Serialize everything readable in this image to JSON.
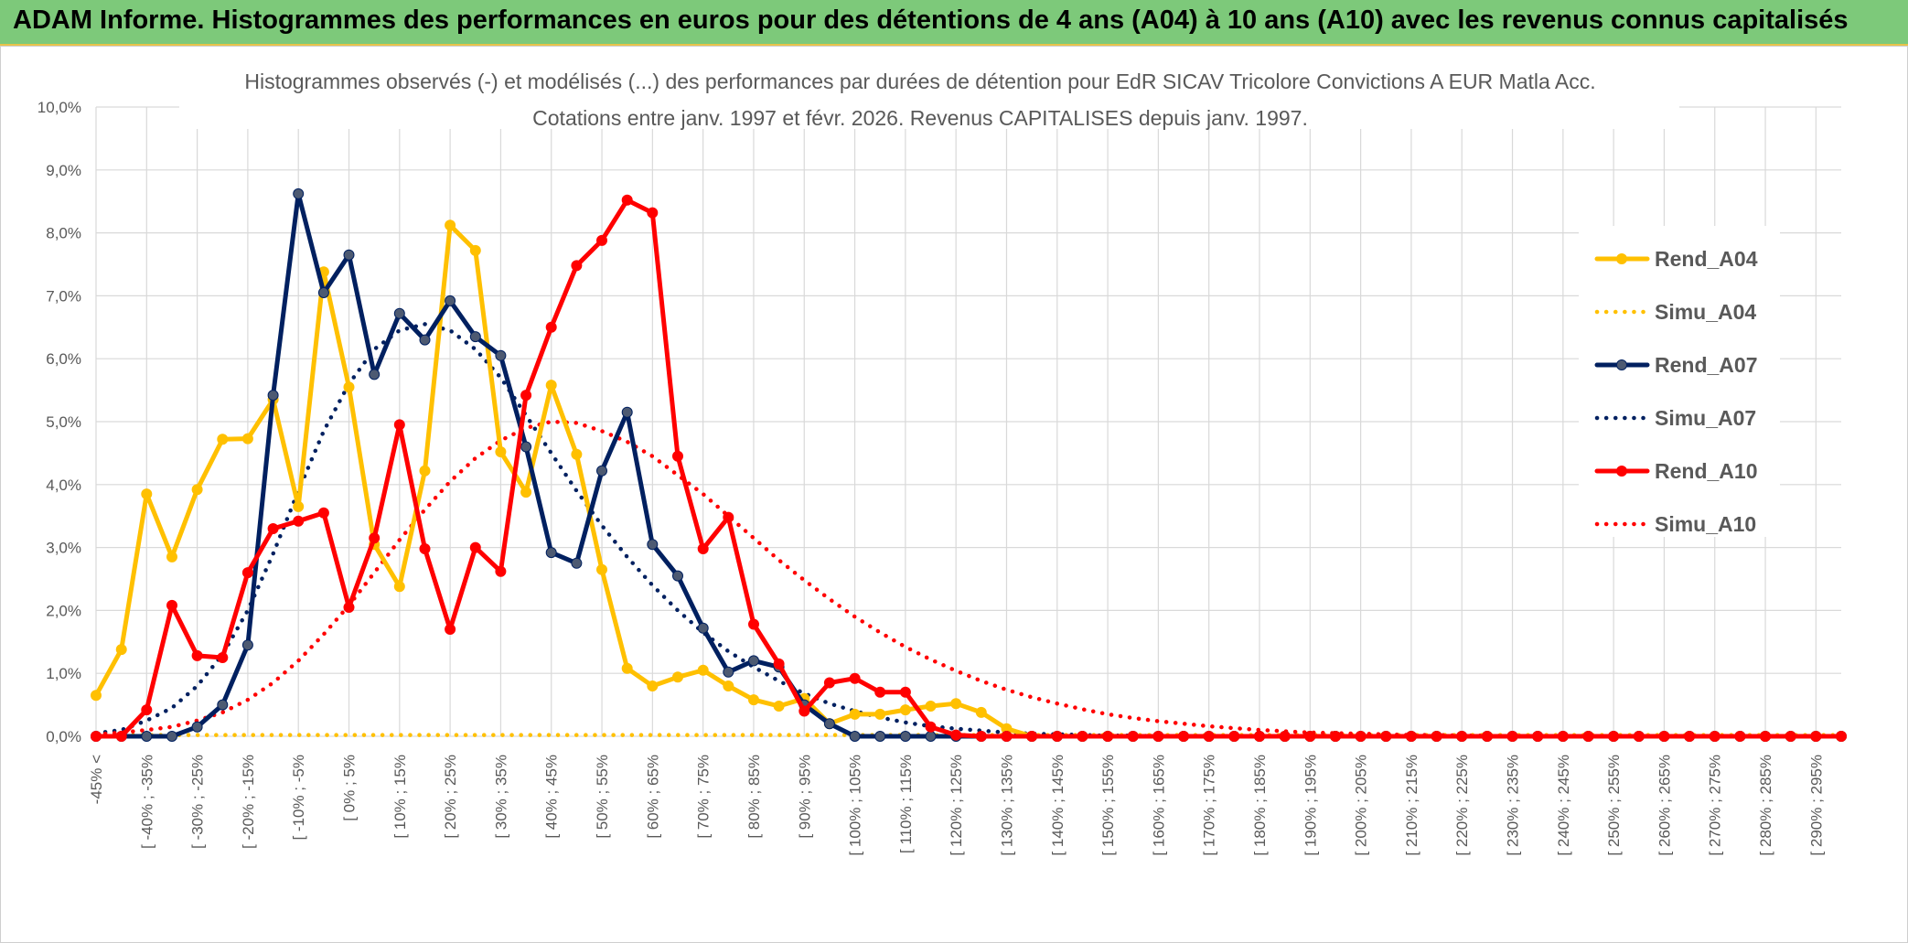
{
  "header": {
    "title": "ADAM Informe. Histogrammes des performances en euros pour des détentions de 4 ans (A04) à 10 ans (A10) avec les revenus connus capitalisés"
  },
  "colors": {
    "banner_bg": "#7dc97a",
    "banner_border": "#e8c34a",
    "grid": "#d9d9d9",
    "text": "#595959"
  },
  "chart_data": {
    "type": "line",
    "title_lines": [
      "Histogrammes observés (-) et modélisés (...) des performances par durées de détention pour EdR SICAV Tricolore Convictions A EUR Matla Acc.",
      "Cotations entre janv. 1997 et févr. 2026. Revenus CAPITALISES depuis janv. 1997."
    ],
    "ylim": [
      0,
      10
    ],
    "yticks": [
      "0,0%",
      "1,0%",
      "2,0%",
      "3,0%",
      "4,0%",
      "5,0%",
      "6,0%",
      "7,0%",
      "8,0%",
      "9,0%",
      "10,0%"
    ],
    "grid": true,
    "legend_position": "right",
    "categories": [
      "-45% <",
      "[ -45% ; -40%",
      "[ -40% ; -35%",
      "[ -35% ; -30%",
      "[ -30% ; -25%",
      "[ -25% ; -20%",
      "[ -20% ; -15%",
      "[ -15% ; -10%",
      "[ -10% ; -5%",
      "[ -5% ; 0%",
      "[ 0% ; 5%",
      "[ 5% ; 10%",
      "[ 10% ; 15%",
      "[ 15% ; 20%",
      "[ 20% ; 25%",
      "[ 25% ; 30%",
      "[ 30% ; 35%",
      "[ 35% ; 40%",
      "[ 40% ; 45%",
      "[ 45% ; 50%",
      "[ 50% ; 55%",
      "[ 55% ; 60%",
      "[ 60% ; 65%",
      "[ 65% ; 70%",
      "[ 70% ; 75%",
      "[ 75% ; 80%",
      "[ 80% ; 85%",
      "[ 85% ; 90%",
      "[ 90% ; 95%",
      "[ 95% ; 100%",
      "[ 100% ; 105%",
      "[ 105% ; 110%",
      "[ 110% ; 115%",
      "[ 115% ; 120%",
      "[ 120% ; 125%",
      "[ 125% ; 130%",
      "[ 130% ; 135%",
      "[ 135% ; 140%",
      "[ 140% ; 145%",
      "[ 145% ; 150%",
      "[ 150% ; 155%",
      "[ 155% ; 160%",
      "[ 160% ; 165%",
      "[ 165% ; 170%",
      "[ 170% ; 175%",
      "[ 175% ; 180%",
      "[ 180% ; 185%",
      "[ 185% ; 190%",
      "[ 190% ; 195%",
      "[ 195% ; 200%",
      "[ 200% ; 205%",
      "[ 205% ; 210%",
      "[ 210% ; 215%",
      "[ 215% ; 220%",
      "[ 220% ; 225%",
      "[ 225% ; 230%",
      "[ 230% ; 235%",
      "[ 235% ; 240%",
      "[ 240% ; 245%",
      "[ 245% ; 250%",
      "[ 250% ; 255%",
      "[ 255% ; 260%",
      "[ 260% ; 265%",
      "[ 265% ; 270%",
      "[ 270% ; 275%",
      "[ 275% ; 280%",
      "[ 280% ; 285%",
      "[ 285% ; 290%",
      "[ 290% ; 295%",
      "[ 295% ; 300%"
    ],
    "visible_tick_labels": [
      "-45% <",
      "[ -40% ; -35%",
      "[ -30% ; -25%",
      "[ -20% ; -15%",
      "[ -10% ; -5%",
      "[ 0% ; 5%",
      "[ 10% ; 15%",
      "[ 20% ; 25%",
      "[ 30% ; 35%",
      "[ 40% ; 45%",
      "[ 50% ; 55%",
      "[ 60% ; 65%",
      "[ 70% ; 75%",
      "[ 80% ; 85%",
      "[ 90% ; 95%",
      "[ 100% ; 105%",
      "[ 110% ; 115%",
      "[ 120% ; 125%",
      "[ 130% ; 135%",
      "[ 140% ; 145%",
      "[ 150% ; 155%",
      "[ 160% ; 165%",
      "[ 170% ; 175%",
      "[ 180% ; 185%",
      "[ 190% ; 195%",
      "[ 200% ; 205%",
      "[ 210% ; 215%",
      "[ 220% ; 225%",
      "[ 230% ; 235%",
      "[ 240% ; 245%",
      "[ 250% ; 255%",
      "[ 260% ; 265%",
      "[ 270% ; 275%",
      "[ 280% ; 285%",
      "[ 290% ; 295%"
    ],
    "series": [
      {
        "name": "Rend_A04",
        "color": "#ffc000",
        "style": "solid",
        "markers": true,
        "values": [
          0.65,
          1.38,
          3.85,
          2.85,
          3.92,
          4.72,
          4.73,
          5.35,
          3.65,
          7.38,
          5.55,
          3.05,
          2.38,
          4.22,
          8.12,
          7.72,
          4.52,
          3.88,
          5.58,
          4.48,
          2.65,
          1.08,
          0.8,
          0.94,
          1.05,
          0.8,
          0.58,
          0.48,
          0.6,
          0.2,
          0.35,
          0.35,
          0.42,
          0.48,
          0.52,
          0.38,
          0.12,
          0,
          0,
          0,
          0,
          0,
          0,
          0,
          0,
          0,
          0,
          0,
          0,
          0,
          0,
          0,
          0,
          0,
          0,
          0,
          0,
          0,
          0,
          0,
          0,
          0,
          0,
          0,
          0,
          0,
          0,
          0,
          0,
          0
        ]
      },
      {
        "name": "Simu_A04",
        "color": "#ffc000",
        "style": "dotted",
        "markers": false,
        "values": [
          0.02,
          0.02,
          0.02,
          0.02,
          0.02,
          0.02,
          0.02,
          0.02,
          0.02,
          0.02,
          0.02,
          0.02,
          0.02,
          0.02,
          0.02,
          0.02,
          0.02,
          0.02,
          0.02,
          0.02,
          0.02,
          0.02,
          0.02,
          0.02,
          0.02,
          0.02,
          0.02,
          0.02,
          0.02,
          0.02,
          0.02,
          0.02,
          0.02,
          0.02,
          0.02,
          0.02,
          0.02,
          0.02,
          0.02,
          0.02,
          0.02,
          0.02,
          0.02,
          0.02,
          0.02,
          0.02,
          0.02,
          0.02,
          0.02,
          0.02,
          0.02,
          0.02,
          0.02,
          0.02,
          0.02,
          0.02,
          0.02,
          0.02,
          0.02,
          0.02,
          0.02,
          0.02,
          0.02,
          0.02,
          0.02,
          0.02,
          0.02,
          0.02,
          0.02,
          0.02
        ]
      },
      {
        "name": "Rend_A07",
        "color": "#002060",
        "style": "solid",
        "markers": true,
        "values": [
          0,
          0,
          0,
          0,
          0.15,
          0.5,
          1.45,
          5.42,
          8.62,
          7.05,
          7.65,
          5.75,
          6.72,
          6.3,
          6.92,
          6.35,
          6.05,
          4.6,
          2.92,
          2.75,
          4.22,
          5.15,
          3.05,
          2.55,
          1.72,
          1.02,
          1.2,
          1.1,
          0.5,
          0.2,
          0,
          0,
          0,
          0,
          0,
          0,
          0,
          0,
          0,
          0,
          0,
          0,
          0,
          0,
          0,
          0,
          0,
          0,
          0,
          0,
          0,
          0,
          0,
          0,
          0,
          0,
          0,
          0,
          0,
          0,
          0,
          0,
          0,
          0,
          0,
          0,
          0,
          0,
          0,
          0
        ]
      },
      {
        "name": "Simu_A07",
        "color": "#002060",
        "style": "dotted",
        "markers": false,
        "values": [
          0.05,
          0.1,
          0.25,
          0.45,
          0.8,
          1.3,
          2.0,
          2.9,
          3.9,
          4.85,
          5.6,
          6.15,
          6.45,
          6.55,
          6.45,
          6.15,
          5.7,
          5.1,
          4.5,
          3.9,
          3.35,
          2.85,
          2.4,
          2.0,
          1.65,
          1.35,
          1.1,
          0.88,
          0.68,
          0.52,
          0.4,
          0.3,
          0.22,
          0.16,
          0.12,
          0.09,
          0.06,
          0.04,
          0.03,
          0.02,
          0.01,
          0.01,
          0,
          0,
          0,
          0,
          0,
          0,
          0,
          0,
          0,
          0,
          0,
          0,
          0,
          0,
          0,
          0,
          0,
          0,
          0,
          0,
          0,
          0,
          0,
          0,
          0,
          0,
          0,
          0
        ]
      },
      {
        "name": "Rend_A10",
        "color": "#ff0000",
        "style": "solid",
        "markers": true,
        "values": [
          0,
          0,
          0.42,
          2.08,
          1.28,
          1.25,
          2.6,
          3.3,
          3.42,
          3.55,
          2.05,
          3.15,
          4.95,
          2.98,
          1.7,
          3.0,
          2.62,
          5.42,
          6.5,
          7.48,
          7.88,
          8.52,
          8.32,
          4.45,
          2.98,
          3.48,
          1.78,
          1.15,
          0.4,
          0.85,
          0.92,
          0.7,
          0.7,
          0.15,
          0.02,
          0,
          0,
          0,
          0,
          0,
          0,
          0,
          0,
          0,
          0,
          0,
          0,
          0,
          0,
          0,
          0,
          0,
          0,
          0,
          0,
          0,
          0,
          0,
          0,
          0,
          0,
          0,
          0,
          0,
          0,
          0,
          0,
          0,
          0,
          0
        ]
      },
      {
        "name": "Simu_A10",
        "color": "#ff0000",
        "style": "dotted",
        "markers": false,
        "values": [
          0.03,
          0.06,
          0.1,
          0.15,
          0.25,
          0.38,
          0.58,
          0.85,
          1.2,
          1.62,
          2.08,
          2.6,
          3.12,
          3.6,
          4.05,
          4.42,
          4.7,
          4.9,
          5.0,
          4.98,
          4.85,
          4.68,
          4.45,
          4.15,
          3.85,
          3.5,
          3.15,
          2.8,
          2.48,
          2.18,
          1.9,
          1.65,
          1.42,
          1.22,
          1.04,
          0.88,
          0.74,
          0.62,
          0.52,
          0.43,
          0.35,
          0.29,
          0.24,
          0.2,
          0.16,
          0.13,
          0.1,
          0.08,
          0.06,
          0.05,
          0.04,
          0.03,
          0.02,
          0.02,
          0.01,
          0.01,
          0,
          0,
          0,
          0,
          0,
          0,
          0,
          0,
          0,
          0,
          0,
          0,
          0,
          0
        ]
      }
    ]
  }
}
